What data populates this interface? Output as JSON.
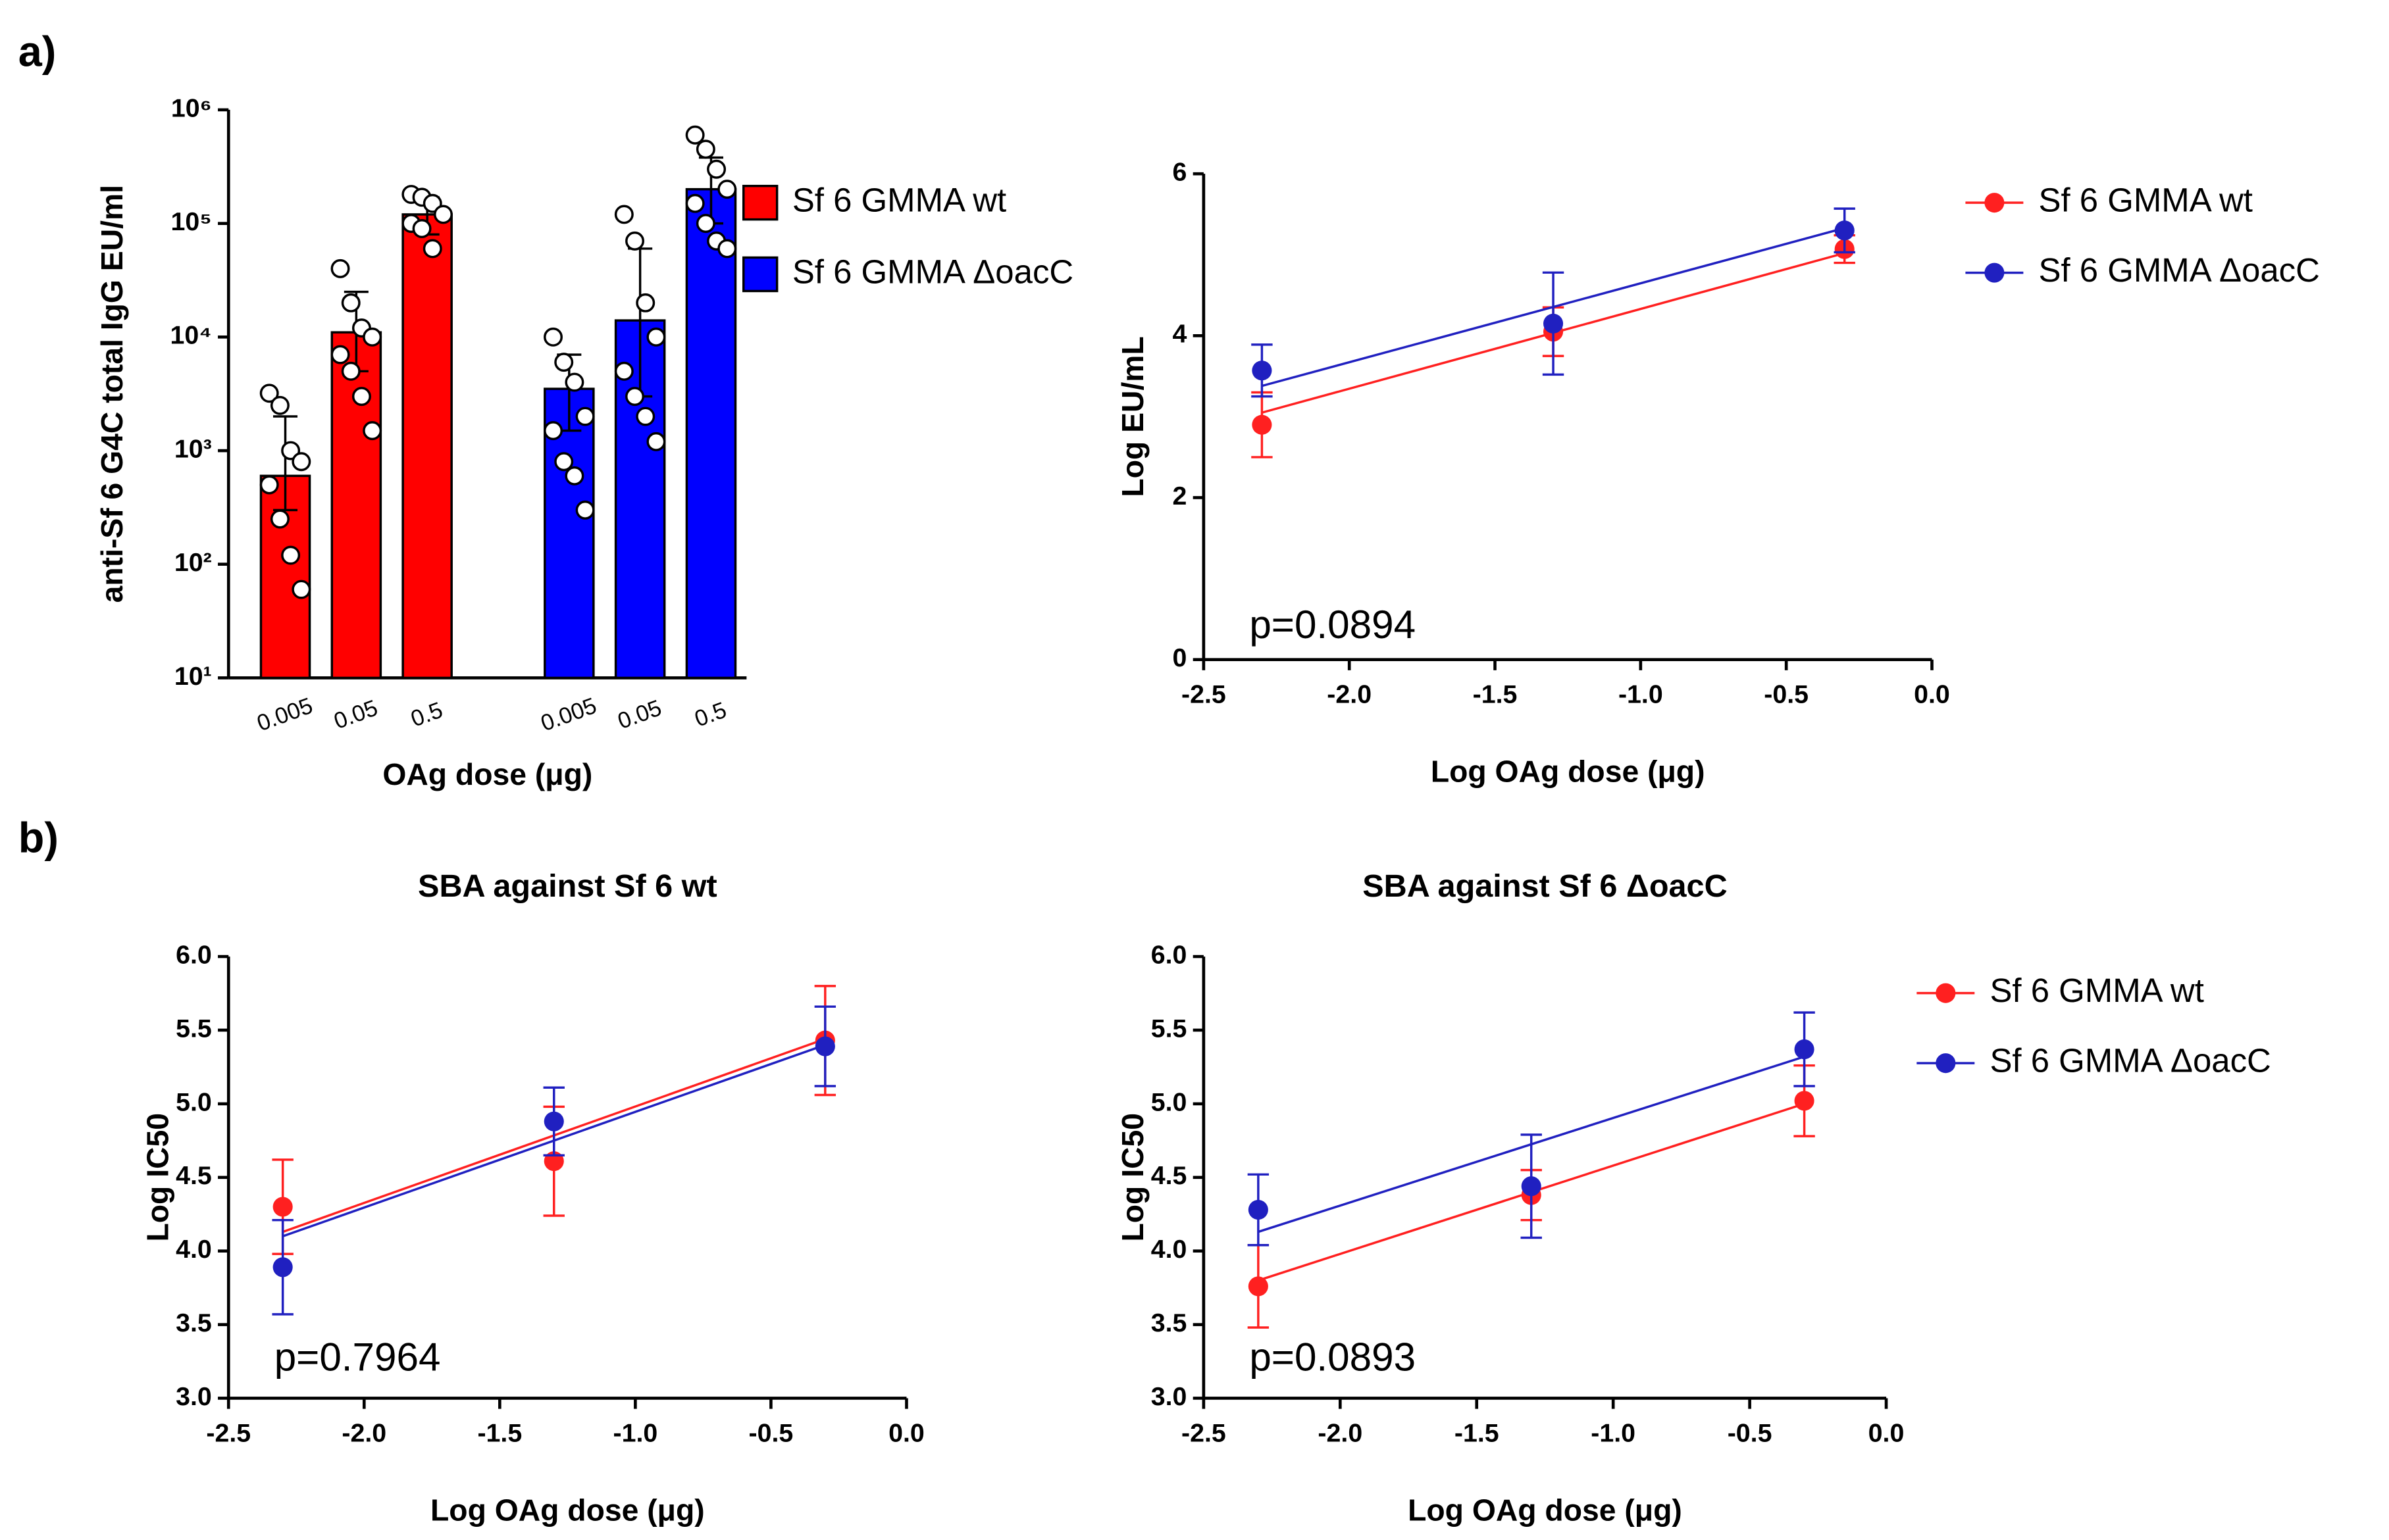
{
  "panel_labels": [
    "a)",
    "b)"
  ],
  "chart_data": [
    {
      "type": "bar",
      "log_y": true,
      "ylabel": "anti-Sf 6 G4C total IgG EU/ml",
      "xlabel": "OAg dose (μg)",
      "categories": [
        "0.005",
        "0.05",
        "0.5"
      ],
      "ylim": [
        10,
        1000000
      ],
      "yticks": [
        {
          "value": 10,
          "label": "10¹"
        },
        {
          "value": 100,
          "label": "10²"
        },
        {
          "value": 1000,
          "label": "10³"
        },
        {
          "value": 10000,
          "label": "10⁴"
        },
        {
          "value": 100000,
          "label": "10⁵"
        },
        {
          "value": 1000000,
          "label": "10⁶"
        }
      ],
      "legend": true,
      "series": [
        {
          "name": "Sf 6 GMMA wt",
          "color": "#ff0000",
          "values": [
            600,
            11000,
            120000
          ],
          "error_lower": [
            300,
            5000,
            80000
          ],
          "error_upper": [
            2000,
            25000,
            170000
          ],
          "points": [
            [
              3200,
              2500,
              1000,
              800,
              500,
              250,
              120,
              60
            ],
            [
              40000,
              20000,
              12000,
              10000,
              7000,
              5000,
              3000,
              1500
            ],
            [
              180000,
              170000,
              150000,
              120000,
              100000,
              90000,
              60000
            ]
          ]
        },
        {
          "name": "Sf 6 GMMA ΔoacC",
          "color": "#0000ff",
          "values": [
            3500,
            14000,
            200000
          ],
          "error_lower": [
            1500,
            3000,
            100000
          ],
          "error_upper": [
            7000,
            60000,
            380000
          ],
          "points": [
            [
              10000,
              6000,
              4000,
              2000,
              1500,
              800,
              600,
              300
            ],
            [
              120000,
              70000,
              20000,
              10000,
              5000,
              3000,
              2000,
              1200
            ],
            [
              600000,
              450000,
              300000,
              200000,
              150000,
              100000,
              70000,
              60000
            ]
          ]
        }
      ]
    },
    {
      "type": "scatter",
      "ylabel": "Log EU/mL",
      "xlabel": "Log OAg dose (μg)",
      "annotation": "p=0.0894",
      "x": [
        -2.3,
        -1.3,
        -0.3
      ],
      "xlim": [
        -2.5,
        0
      ],
      "xticks": [
        -2.5,
        {
          "value": -2,
          "label": "-2.0"
        },
        -1.5,
        {
          "value": -1,
          "label": "-1.0"
        },
        -0.5,
        {
          "value": 0,
          "label": "0.0"
        }
      ],
      "ylim": [
        0,
        6
      ],
      "yticks": [
        0,
        2,
        4,
        6
      ],
      "legend": true,
      "series": [
        {
          "name": "Sf 6 GMMA wt",
          "color": "#ff2020",
          "values": [
            2.9,
            4.05,
            5.07
          ],
          "errors": [
            0.4,
            0.3,
            0.17
          ],
          "fit": [
            3.05,
            5.02
          ]
        },
        {
          "name": "Sf 6 GMMA ΔoacC",
          "color": "#2020c0",
          "values": [
            3.57,
            4.15,
            5.3
          ],
          "errors": [
            0.32,
            0.63,
            0.27
          ],
          "fit": [
            3.38,
            5.33
          ]
        }
      ]
    },
    {
      "type": "scatter",
      "title": "SBA against Sf 6 wt",
      "ylabel": "Log IC50",
      "xlabel": "Log OAg dose (μg)",
      "annotation": "p=0.7964",
      "x": [
        -2.3,
        -1.3,
        -0.3
      ],
      "xlim": [
        -2.5,
        0
      ],
      "xticks": [
        -2.5,
        {
          "value": -2,
          "label": "-2.0"
        },
        -1.5,
        {
          "value": -1,
          "label": "-1.0"
        },
        -0.5,
        {
          "value": 0,
          "label": "0.0"
        }
      ],
      "ylim": [
        3,
        6
      ],
      "yticks": [
        {
          "value": 3,
          "label": "3.0"
        },
        3.5,
        {
          "value": 4,
          "label": "4.0"
        },
        4.5,
        {
          "value": 5,
          "label": "5.0"
        },
        5.5,
        {
          "value": 6,
          "label": "6.0"
        }
      ],
      "legend": false,
      "series": [
        {
          "name": "Sf 6 GMMA wt",
          "color": "#ff2020",
          "values": [
            4.3,
            4.61,
            5.43
          ],
          "errors": [
            0.32,
            0.37,
            0.37
          ],
          "fit": [
            4.13,
            5.44
          ]
        },
        {
          "name": "Sf 6 GMMA ΔoacC",
          "color": "#2020c0",
          "values": [
            3.89,
            4.88,
            5.39
          ],
          "errors": [
            0.32,
            0.23,
            0.27
          ],
          "fit": [
            4.1,
            5.4
          ]
        }
      ]
    },
    {
      "type": "scatter",
      "title": "SBA against Sf 6 ΔoacC",
      "ylabel": "Log IC50",
      "xlabel": "Log OAg dose (μg)",
      "annotation": "p=0.0893",
      "x": [
        -2.3,
        -1.3,
        -0.3
      ],
      "xlim": [
        -2.5,
        0
      ],
      "xticks": [
        -2.5,
        {
          "value": -2,
          "label": "-2.0"
        },
        -1.5,
        {
          "value": -1,
          "label": "-1.0"
        },
        -0.5,
        {
          "value": 0,
          "label": "0.0"
        }
      ],
      "ylim": [
        3,
        6
      ],
      "yticks": [
        {
          "value": 3,
          "label": "3.0"
        },
        3.5,
        {
          "value": 4,
          "label": "4.0"
        },
        4.5,
        {
          "value": 5,
          "label": "5.0"
        },
        5.5,
        {
          "value": 6,
          "label": "6.0"
        }
      ],
      "legend": true,
      "series": [
        {
          "name": "Sf 6 GMMA wt",
          "color": "#ff2020",
          "values": [
            3.76,
            4.38,
            5.02
          ],
          "errors": [
            0.28,
            0.17,
            0.24
          ],
          "fit": [
            3.8,
            5.0
          ]
        },
        {
          "name": "Sf 6 GMMA ΔoacC",
          "color": "#2020c0",
          "values": [
            4.28,
            4.44,
            5.37
          ],
          "errors": [
            0.24,
            0.35,
            0.25
          ],
          "fit": [
            4.13,
            5.32
          ]
        }
      ]
    }
  ]
}
